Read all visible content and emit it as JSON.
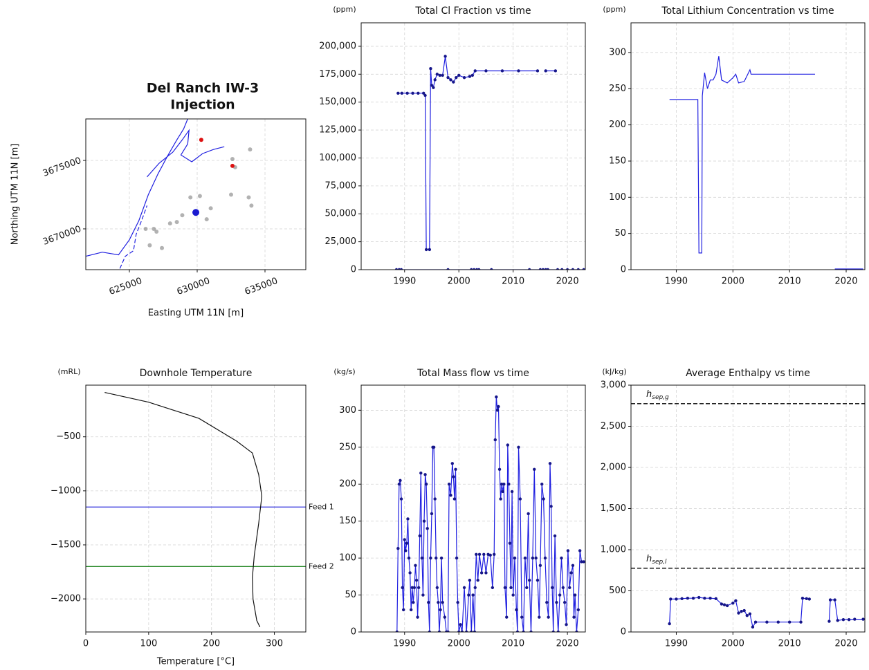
{
  "chart_data": [
    {
      "type": "scatter",
      "title": [
        "Del Ranch IW-3",
        "Injection"
      ],
      "xlabel": "Easting UTM 11N [m]",
      "ylabel": "Northing UTM 11N [m]",
      "xlim": [
        621786,
        638010
      ],
      "ylim": [
        3667020,
        3678030
      ],
      "xticks": [
        625000,
        630000,
        635000
      ],
      "yticks": [
        3670000,
        3675000
      ],
      "grid": true,
      "rotated_ticks": true,
      "series": [
        {
          "style": "line",
          "color": "#1f1fe0",
          "x": [
            621786,
            623000,
            624200,
            625000,
            625700,
            626400,
            627100,
            627800,
            628500,
            629000,
            629300
          ],
          "values": [
            3668000,
            3668300,
            3668100,
            3669200,
            3670600,
            3672500,
            3674000,
            3675300,
            3676500,
            3677300,
            3678030
          ]
        },
        {
          "style": "line",
          "color": "#1f1fe0",
          "x": [
            626300,
            627200,
            628200,
            628900,
            629400,
            629300,
            628800,
            629600,
            630400,
            631200,
            632000
          ],
          "values": [
            3673800,
            3674800,
            3675600,
            3676500,
            3677200,
            3676200,
            3675400,
            3674900,
            3675500,
            3675800,
            3676000
          ]
        },
        {
          "style": "dashed",
          "color": "#1f1fe0",
          "x": [
            624300,
            624700,
            625300,
            625500,
            625900,
            626300
          ],
          "values": [
            3667100,
            3668000,
            3668400,
            3669600,
            3670600,
            3671700
          ]
        },
        {
          "style": "points",
          "color": "#555555",
          "alpha": 0.45,
          "x": [
            627000,
            626500,
            627400,
            626200,
            628500,
            628900,
            629500,
            630200,
            631000,
            632500,
            632800,
            633800,
            634000,
            633900,
            632600,
            628000,
            626800,
            630700
          ],
          "values": [
            3669800,
            3668800,
            3668600,
            3670000,
            3670500,
            3671000,
            3672300,
            3672400,
            3671500,
            3672500,
            3674500,
            3672300,
            3671700,
            3675800,
            3675100,
            3670400,
            3670000,
            3670700
          ]
        },
        {
          "style": "points",
          "color": "#dd1111",
          "alpha": 1,
          "x": [
            630300,
            632600
          ],
          "values": [
            3676500,
            3674600
          ]
        },
        {
          "style": "points",
          "color": "#1a1ad0",
          "alpha": 1,
          "size": 5,
          "x": [
            629900
          ],
          "values": [
            3671200
          ]
        }
      ]
    },
    {
      "type": "line",
      "title": "Total Cl Fraction vs time",
      "unit": "(ppm)",
      "xlim": [
        1982,
        2023.3
      ],
      "ylim": [
        0,
        221000
      ],
      "xticks": [
        1990,
        2000,
        2010,
        2020
      ],
      "yticks": [
        0,
        {
          "value": 25000,
          "label": "25,000"
        },
        {
          "value": 50000,
          "label": "50,000"
        },
        {
          "value": 75000,
          "label": "75,000"
        },
        {
          "value": 100000,
          "label": "100,000"
        },
        {
          "value": 125000,
          "label": "125,000"
        },
        {
          "value": 150000,
          "label": "150,000"
        },
        {
          "value": 175000,
          "label": "175,000"
        },
        {
          "value": 200000,
          "label": "200,000"
        }
      ],
      "grid": true,
      "series": [
        {
          "color": "#1f1fe0",
          "marker_color": "#16168a",
          "markers": true,
          "x": [
            1988.8,
            1989.5,
            1990.5,
            1991.5,
            1992.5,
            1993.5,
            1993.8,
            1994,
            1994.6,
            1994.8,
            1995,
            1995.3,
            1995.6,
            1996,
            1996.5,
            1997,
            1997.5,
            1998,
            1998.5,
            1999,
            1999.5,
            2000,
            2001,
            2002,
            2002.5,
            2003,
            2005,
            2008,
            2011,
            2014.5,
            2015.2,
            2016,
            2017.8
          ],
          "values": [
            158000,
            158000,
            158000,
            158000,
            158000,
            158000,
            156000,
            18000,
            18000,
            180000,
            165000,
            163000,
            170000,
            175000,
            174000,
            174000,
            191000,
            172000,
            170000,
            168000,
            172000,
            174000,
            172000,
            173000,
            174000,
            178000,
            178000,
            178000,
            178000,
            178000,
            null,
            178000,
            178000
          ]
        },
        {
          "color": "#1f1fe0",
          "marker_color": "#16168a",
          "markers": true,
          "x": [
            1988.5,
            1989,
            1989.4,
            1998,
            2002.3,
            2002.8,
            2003.3,
            2003.7,
            2006,
            2013,
            2015,
            2015.5,
            2016,
            2016.4,
            2018.2,
            2019,
            2020,
            2021,
            2022,
            2023
          ],
          "values": [
            0,
            0,
            0,
            0,
            0,
            0,
            0,
            0,
            0,
            0,
            0,
            0,
            0,
            0,
            0,
            0,
            0,
            0,
            0,
            0
          ]
        }
      ]
    },
    {
      "type": "line",
      "title": "Total Lithium Concentration vs time",
      "unit": "(ppm)",
      "xlim": [
        1982,
        2023.3
      ],
      "ylim": [
        0,
        341
      ],
      "xticks": [
        1990,
        2000,
        2010,
        2020
      ],
      "yticks": [
        0,
        50,
        100,
        150,
        200,
        250,
        300
      ],
      "grid": true,
      "series": [
        {
          "color": "#1f1fe0",
          "x": [
            1988.8,
            1993.8,
            1994,
            1994.5,
            1994.6,
            1995,
            1995.5,
            1996,
            1996.5,
            1997,
            1997.5,
            1998,
            1999,
            2000,
            2000.5,
            2001,
            2002,
            2003,
            2003.2,
            2014.5,
            2015.5,
            2018
          ],
          "values": [
            235,
            235,
            23,
            23,
            240,
            272,
            250,
            262,
            262,
            270,
            295,
            262,
            258,
            265,
            270,
            258,
            260,
            276,
            270,
            270,
            null,
            270
          ]
        },
        {
          "color": "#1f1fe0",
          "x": [
            2018,
            2023
          ],
          "values": [
            1,
            1
          ]
        }
      ]
    },
    {
      "type": "line",
      "title": "Downhole Temperature",
      "unit": "(mRL)",
      "xlabel": "Temperature [°C]",
      "xlim": [
        0,
        350
      ],
      "ylim": [
        -2306,
        -22
      ],
      "xticks": [
        0,
        100,
        200,
        300
      ],
      "yticks": [
        {
          "value": -500,
          "label": "−500"
        },
        {
          "value": -1000,
          "label": "−1000"
        },
        {
          "value": -1500,
          "label": "−1500"
        },
        {
          "value": -2000,
          "label": "−2000"
        }
      ],
      "grid": true,
      "series": [
        {
          "color": "#111111",
          "x": [
            30,
            100,
            180,
            240,
            265,
            275,
            280,
            275,
            268,
            265,
            266,
            272,
            277
          ],
          "values": [
            -90,
            -180,
            -330,
            -540,
            -650,
            -850,
            -1050,
            -1300,
            -1600,
            -1800,
            -2000,
            -2200,
            -2260
          ]
        }
      ],
      "reference_lines": [
        {
          "value": -1150,
          "color": "#3a3adf",
          "label": "Feed 1"
        },
        {
          "value": -1700,
          "color": "#2a8a2a",
          "label": "Feed 2"
        }
      ]
    },
    {
      "type": "line",
      "title": "Total Mass flow vs time",
      "unit": "(kg/s)",
      "xlim": [
        1982,
        2023.3
      ],
      "ylim": [
        0,
        334
      ],
      "xticks": [
        1990,
        2000,
        2010,
        2020
      ],
      "yticks": [
        0,
        50,
        100,
        150,
        200,
        250,
        300
      ],
      "grid": true,
      "series": [
        {
          "color": "#1f1fe0",
          "marker_color": "#16168a",
          "markers": true,
          "x": [
            1988.6,
            1988.8,
            1989,
            1989.2,
            1989.4,
            1989.6,
            1989.8,
            1990,
            1990.2,
            1990.4,
            1990.6,
            1990.8,
            1991,
            1991.2,
            1991.4,
            1991.6,
            1991.8,
            1992,
            1992.2,
            1992.4,
            1992.6,
            1992.8,
            1993,
            1993.2,
            1993.4,
            1993.6,
            1993.8,
            1994,
            1994.2,
            1994.4,
            1994.6,
            1994.8,
            1995,
            1995.2,
            1995.4,
            1995.6,
            1995.8,
            1996,
            1996.2,
            1996.4,
            1996.6,
            1996.8,
            1997,
            1997.4,
            1997.7,
            1998,
            1998.2,
            1998.5,
            1998.8,
            1999,
            1999.2,
            1999.4,
            1999.6,
            1999.8,
            2000,
            2000.3,
            2000.6,
            2001,
            2001.4,
            2001.8,
            2002,
            2002.3,
            2002.6,
            2002.9,
            2003,
            2003.2,
            2003.5,
            2003.8,
            2004.2,
            2004.6,
            2005,
            2005.4,
            2005.8,
            2006.2,
            2006.5,
            2006.7,
            2006.9,
            2007.1,
            2007.3,
            2007.5,
            2007.7,
            2007.9,
            2008.1,
            2008.3,
            2008.5,
            2008.8,
            2009,
            2009.2,
            2009.4,
            2009.6,
            2009.8,
            2010,
            2010.3,
            2010.6,
            2010.8,
            2011,
            2011.3,
            2011.6,
            2011.9,
            2012.2,
            2012.5,
            2012.8,
            2013,
            2013.3,
            2013.6,
            2013.9,
            2014.2,
            2014.5,
            2014.8,
            2015,
            2015.3,
            2015.6,
            2015.9,
            2016.2,
            2016.5,
            2016.8,
            2017,
            2017.2,
            2017.4,
            2017.7,
            2018,
            2018.3,
            2018.6,
            2018.9,
            2019.2,
            2019.5,
            2019.8,
            2020.1,
            2020.4,
            2020.7,
            2021,
            2021.2,
            2021.4,
            2021.7,
            2022,
            2022.3,
            2022.6,
            2023
          ],
          "values": [
            0,
            113,
            200,
            205,
            180,
            60,
            30,
            125,
            110,
            120,
            153,
            100,
            80,
            30,
            60,
            40,
            60,
            90,
            70,
            20,
            60,
            130,
            215,
            100,
            50,
            150,
            213,
            200,
            140,
            40,
            0,
            100,
            160,
            250,
            250,
            180,
            100,
            60,
            40,
            0,
            30,
            100,
            40,
            20,
            0,
            0,
            200,
            185,
            228,
            210,
            180,
            220,
            100,
            40,
            0,
            10,
            0,
            60,
            0,
            50,
            70,
            0,
            50,
            0,
            60,
            105,
            70,
            105,
            80,
            105,
            80,
            105,
            104,
            60,
            105,
            260,
            318,
            300,
            305,
            220,
            180,
            200,
            190,
            200,
            60,
            20,
            253,
            200,
            120,
            60,
            190,
            50,
            100,
            30,
            0,
            250,
            180,
            20,
            0,
            100,
            60,
            160,
            70,
            0,
            100,
            220,
            100,
            70,
            20,
            90,
            200,
            180,
            100,
            40,
            20,
            228,
            170,
            60,
            0,
            130,
            40,
            0,
            50,
            100,
            60,
            40,
            10,
            110,
            60,
            80,
            90,
            20,
            50,
            0,
            30,
            110,
            95,
            95
          ]
        }
      ]
    },
    {
      "type": "line",
      "title": "Average Enthalpy vs time",
      "unit": "(kJ/kg)",
      "xlim": [
        1982,
        2023.3
      ],
      "ylim": [
        0,
        3000
      ],
      "xticks": [
        1990,
        2000,
        2010,
        2020
      ],
      "yticks": [
        0,
        500,
        {
          "value": 1000,
          "label": "1,000"
        },
        {
          "value": 1500,
          "label": "1,500"
        },
        {
          "value": 2000,
          "label": "2,000"
        },
        {
          "value": 2500,
          "label": "2,500"
        },
        {
          "value": 3000,
          "label": "3,000"
        }
      ],
      "grid": true,
      "series": [
        {
          "color": "#1f1fe0",
          "marker_color": "#16168a",
          "markers": true,
          "x": [
            1988.8,
            1989,
            1990,
            1991,
            1992,
            1993,
            1994,
            1995,
            1996,
            1997,
            1998,
            1998.5,
            1999,
            2000,
            2000.5,
            2001,
            2001.5,
            2002,
            2002.5,
            2003,
            2003.5,
            2004,
            2006,
            2008,
            2010,
            2012,
            2012.3,
            2013,
            2013.5,
            2016,
            2017,
            2017.2,
            2018,
            2018.5,
            2019.5,
            2020.5,
            2021.5,
            2023
          ],
          "values": [
            100,
            400,
            400,
            405,
            410,
            410,
            420,
            410,
            410,
            405,
            340,
            330,
            320,
            350,
            380,
            230,
            250,
            260,
            200,
            220,
            60,
            120,
            120,
            120,
            120,
            120,
            410,
            405,
            400,
            null,
            130,
            390,
            390,
            140,
            150,
            150,
            155,
            155
          ]
        }
      ],
      "reference_lines": [
        {
          "value": 2775,
          "color": "#000000",
          "dashed": true,
          "label": {
            "symbol": "h",
            "subscript": "sep,g"
          }
        },
        {
          "value": 775,
          "color": "#000000",
          "dashed": true,
          "label": {
            "symbol": "h",
            "subscript": "sep,l"
          }
        }
      ]
    }
  ]
}
